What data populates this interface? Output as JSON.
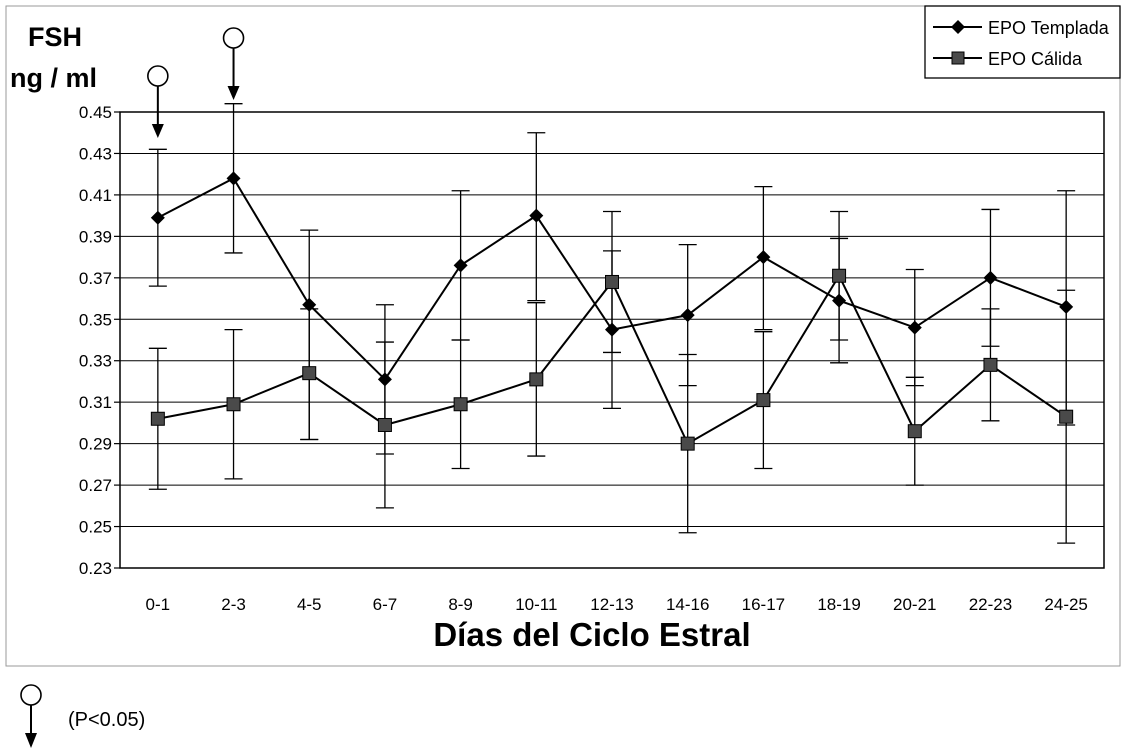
{
  "chart_data": {
    "type": "line",
    "ylabel_line1": "FSH",
    "ylabel_line2": "ng / ml",
    "xlabel": "Días del Ciclo Estral",
    "categories": [
      "0-1",
      "2-3",
      "4-5",
      "6-7",
      "8-9",
      "10-11",
      "12-13",
      "14-16",
      "16-17",
      "18-19",
      "20-21",
      "22-23",
      "24-25"
    ],
    "ylim": [
      0.23,
      0.45
    ],
    "yticks": [
      "0.45",
      "0.43",
      "0.41",
      "0.39",
      "0.37",
      "0.35",
      "0.33",
      "0.31",
      "0.29",
      "0.27",
      "0.25",
      "0.23"
    ],
    "grid": true,
    "legend_position": "top-right",
    "series": [
      {
        "name": "EPO Templada",
        "marker": "diamond",
        "values": [
          0.399,
          0.418,
          0.357,
          0.321,
          0.376,
          0.4,
          0.345,
          0.352,
          0.38,
          0.359,
          0.346,
          0.37,
          0.356
        ],
        "error_low": [
          0.366,
          0.382,
          0.292,
          0.285,
          0.34,
          0.359,
          0.307,
          0.318,
          0.345,
          0.329,
          0.318,
          0.337,
          0.299
        ],
        "error_high": [
          0.432,
          0.454,
          0.393,
          0.357,
          0.412,
          0.44,
          0.383,
          0.386,
          0.414,
          0.389,
          0.374,
          0.403,
          0.412
        ]
      },
      {
        "name": "EPO Cálida",
        "marker": "square",
        "values": [
          0.302,
          0.309,
          0.324,
          0.299,
          0.309,
          0.321,
          0.368,
          0.29,
          0.311,
          0.371,
          0.296,
          0.328,
          0.303
        ],
        "error_low": [
          0.268,
          0.273,
          0.292,
          0.259,
          0.278,
          0.284,
          0.334,
          0.247,
          0.278,
          0.34,
          0.27,
          0.301,
          0.242
        ],
        "error_high": [
          0.336,
          0.345,
          0.355,
          0.339,
          0.34,
          0.358,
          0.402,
          0.333,
          0.344,
          0.402,
          0.322,
          0.355,
          0.364
        ]
      }
    ],
    "significance_markers": [
      "0-1",
      "2-3"
    ],
    "footnote": "(P<0.05)"
  }
}
